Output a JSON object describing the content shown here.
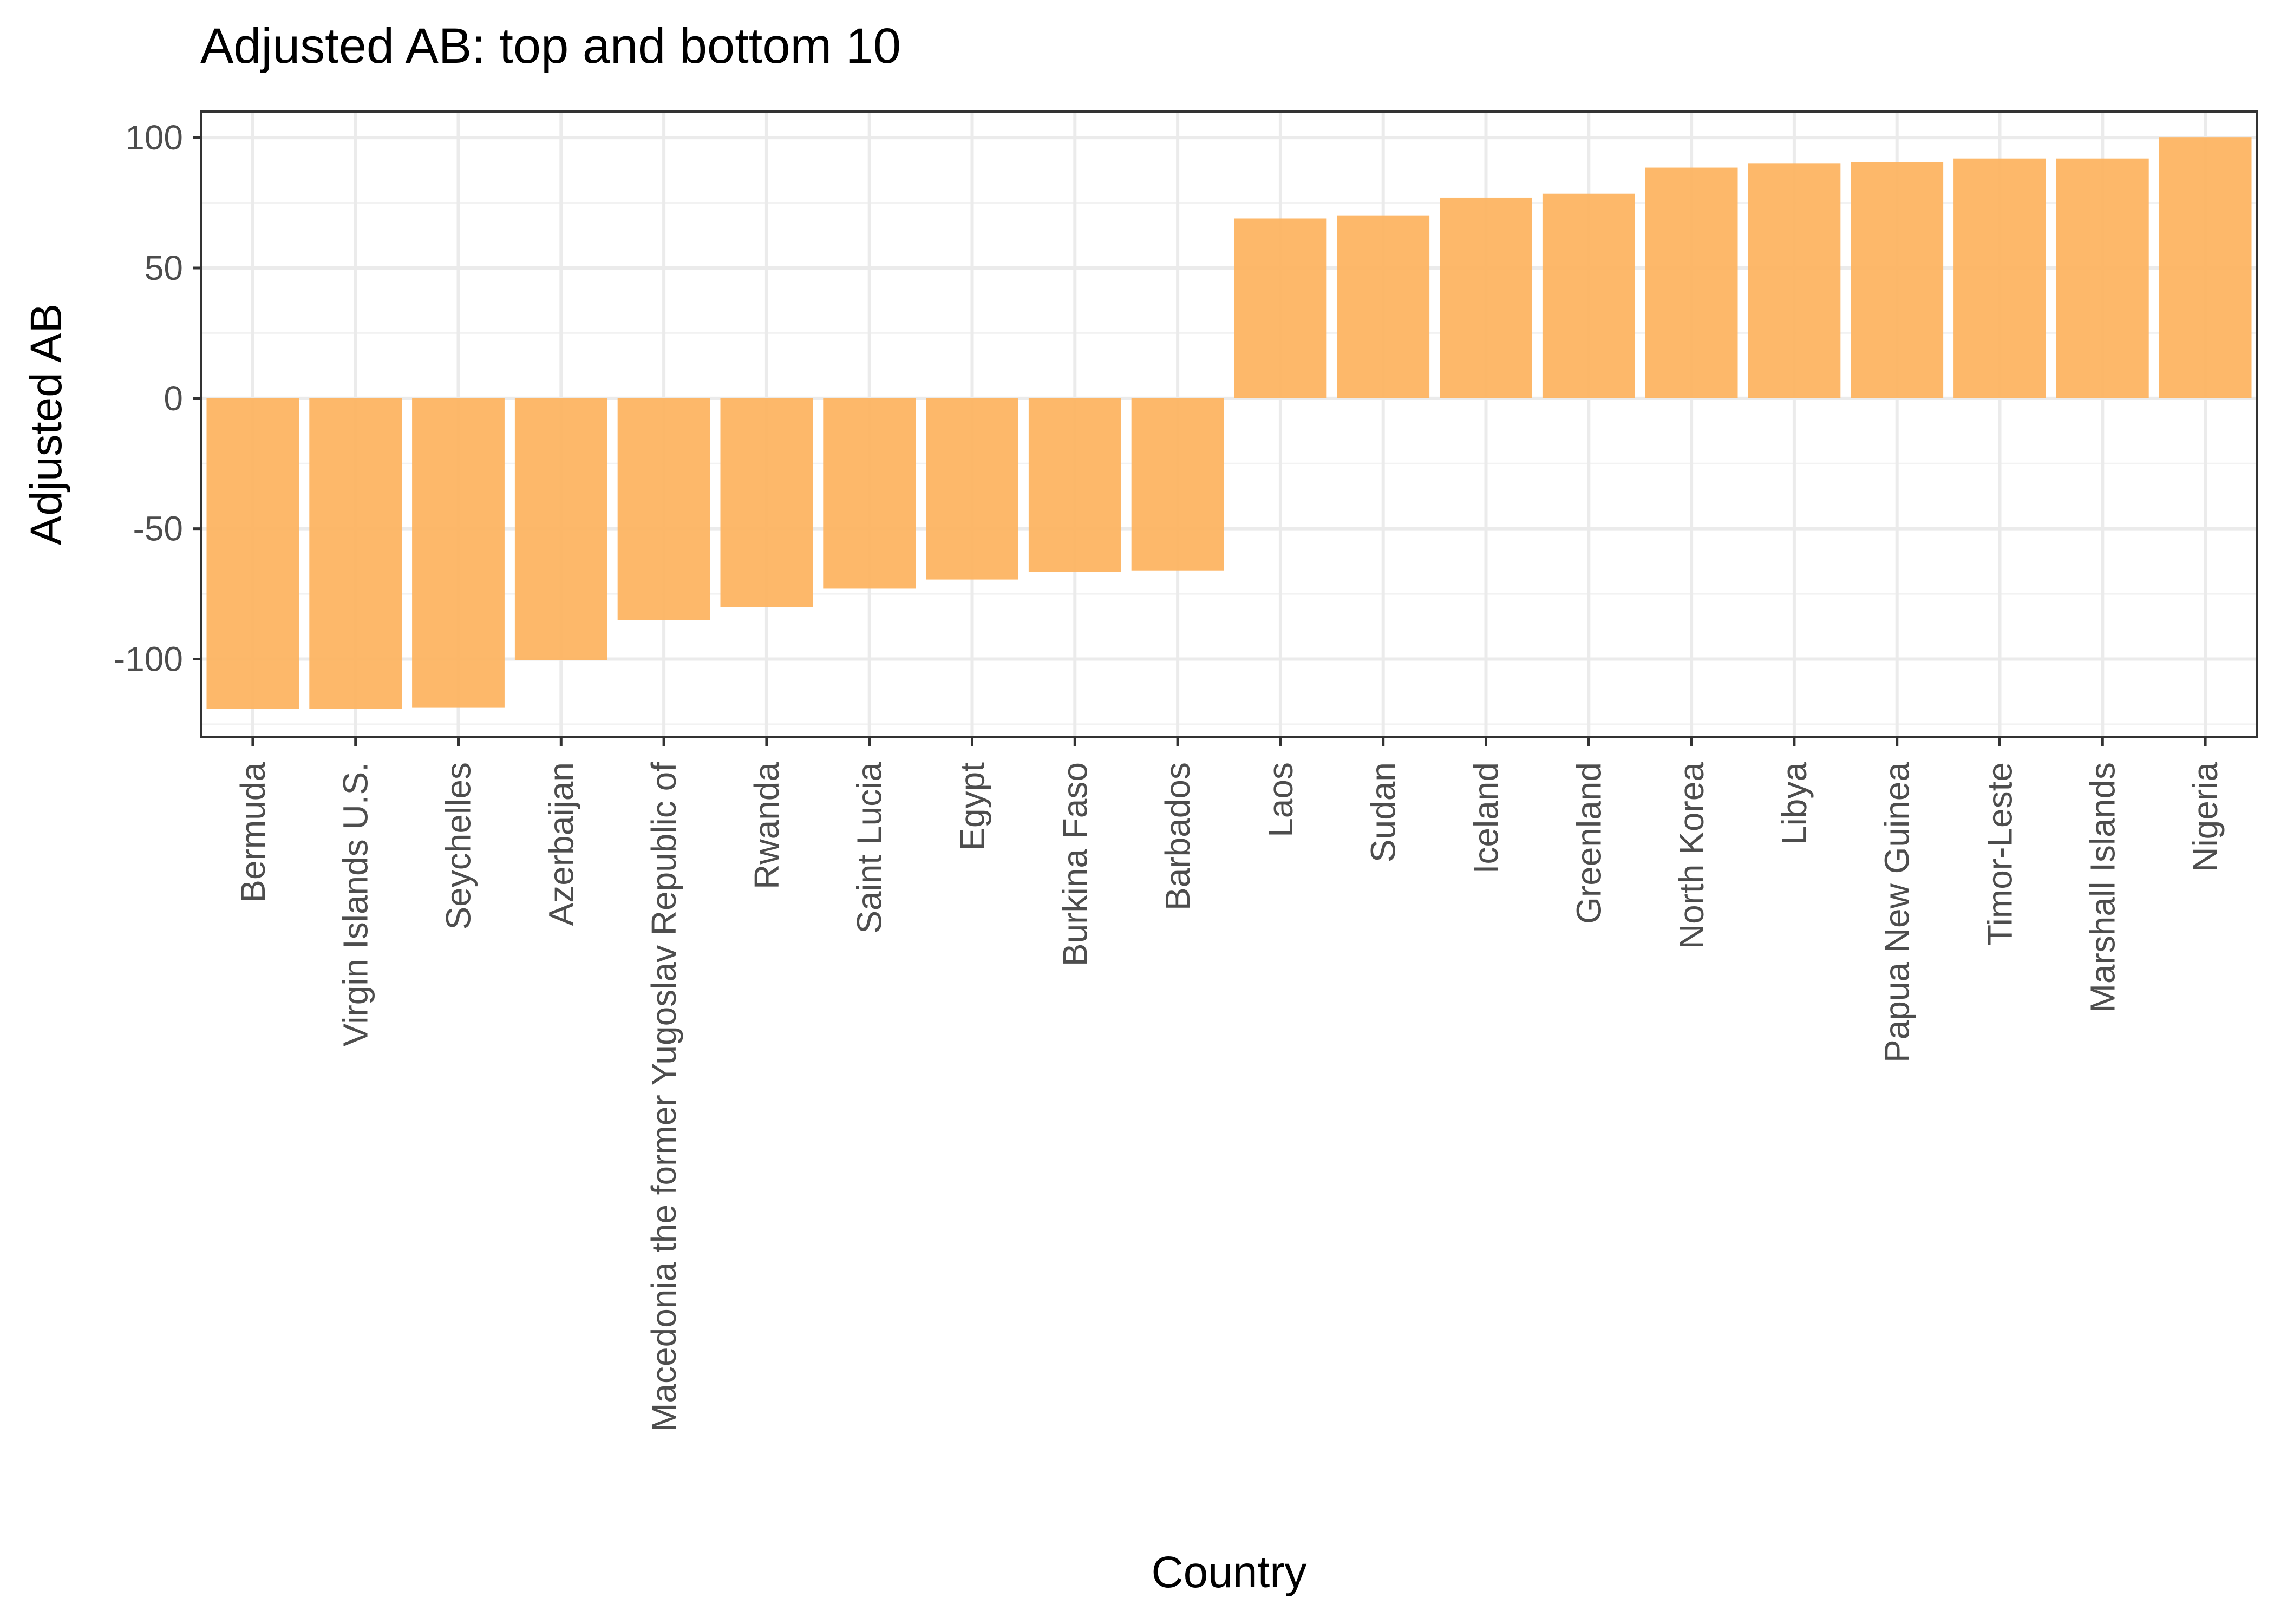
{
  "chart_data": {
    "type": "bar",
    "title": "Adjusted AB: top and bottom 10",
    "xlabel": "Country",
    "ylabel": "Adjusted AB",
    "ylim": [
      -130,
      110
    ],
    "yticks": [
      -100,
      -50,
      0,
      50,
      100
    ],
    "yminor": [
      -125,
      -75,
      -25,
      25,
      75
    ],
    "grid": true,
    "bar_color": "#FDB462",
    "categories": [
      "Bermuda",
      "Virgin Islands U.S.",
      "Seychelles",
      "Azerbaijan",
      "Macedonia the former Yugoslav Republic of",
      "Rwanda",
      "Saint Lucia",
      "Egypt",
      "Burkina Faso",
      "Barbados",
      "Laos",
      "Sudan",
      "Iceland",
      "Greenland",
      "North Korea",
      "Libya",
      "Papua New Guinea",
      "Timor-Leste",
      "Marshall Islands",
      "Nigeria"
    ],
    "values": [
      -119,
      -119,
      -118.5,
      -100.5,
      -85,
      -80,
      -73,
      -69.5,
      -66.5,
      -66,
      69,
      70,
      77,
      78.5,
      88.5,
      90,
      90.5,
      92,
      92,
      100
    ]
  }
}
